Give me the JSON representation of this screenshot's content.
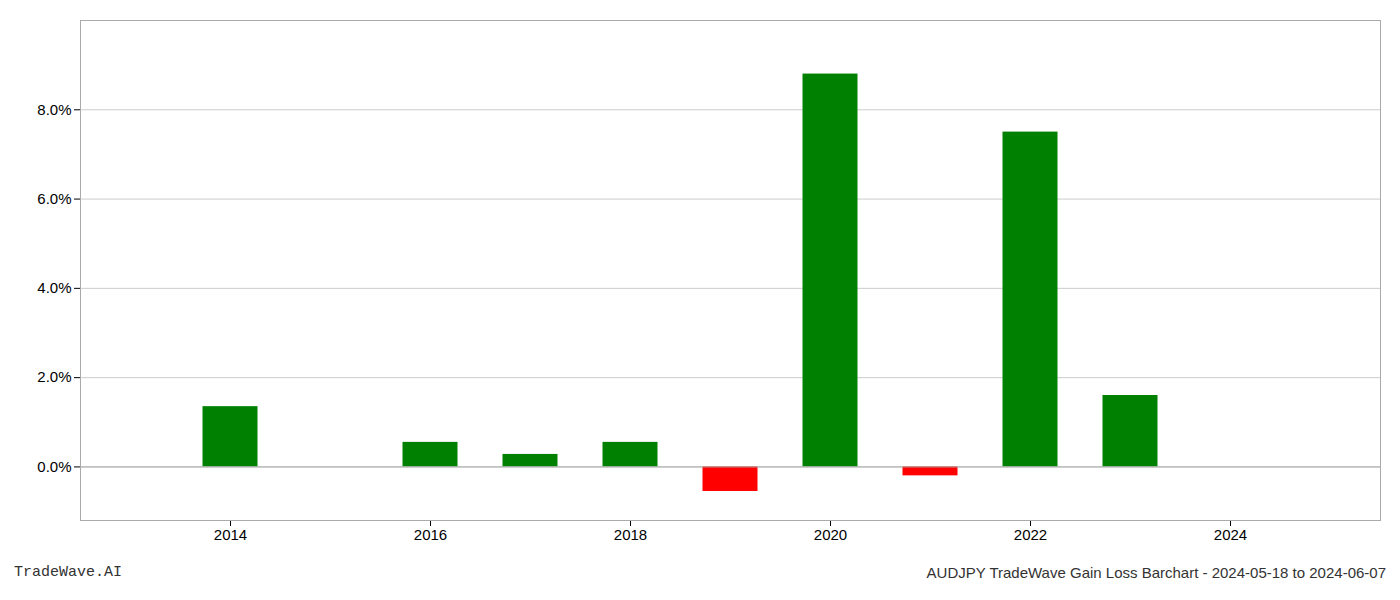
{
  "chart_data": {
    "type": "bar",
    "title": "AUDJPY TradeWave Gain Loss Barchart - 2024-05-18 to 2024-06-07",
    "annotations": [
      "TradeWave.AI"
    ],
    "x": [
      2014,
      2016,
      2017,
      2018,
      2019,
      2020,
      2021,
      2022,
      2023
    ],
    "values": [
      0.0135,
      0.0055,
      0.0028,
      0.0055,
      -0.0055,
      0.088,
      -0.002,
      0.075,
      0.016
    ],
    "colors": [
      "#008000",
      "#008000",
      "#008000",
      "#008000",
      "#ff0000",
      "#008000",
      "#ff0000",
      "#008000",
      "#008000"
    ],
    "xlim": [
      2012.5,
      2025.5
    ],
    "xticks": [
      2014,
      2016,
      2018,
      2020,
      2022,
      2024
    ],
    "ylim": [
      -0.012,
      0.1
    ],
    "yticks": [
      {
        "value": 0.0,
        "label": "0.0%"
      },
      {
        "value": 0.02,
        "label": "2.0%"
      },
      {
        "value": 0.04,
        "label": "4.0%"
      },
      {
        "value": 0.06,
        "label": "6.0%"
      },
      {
        "value": 0.08,
        "label": "8.0%"
      }
    ],
    "grid": true
  }
}
